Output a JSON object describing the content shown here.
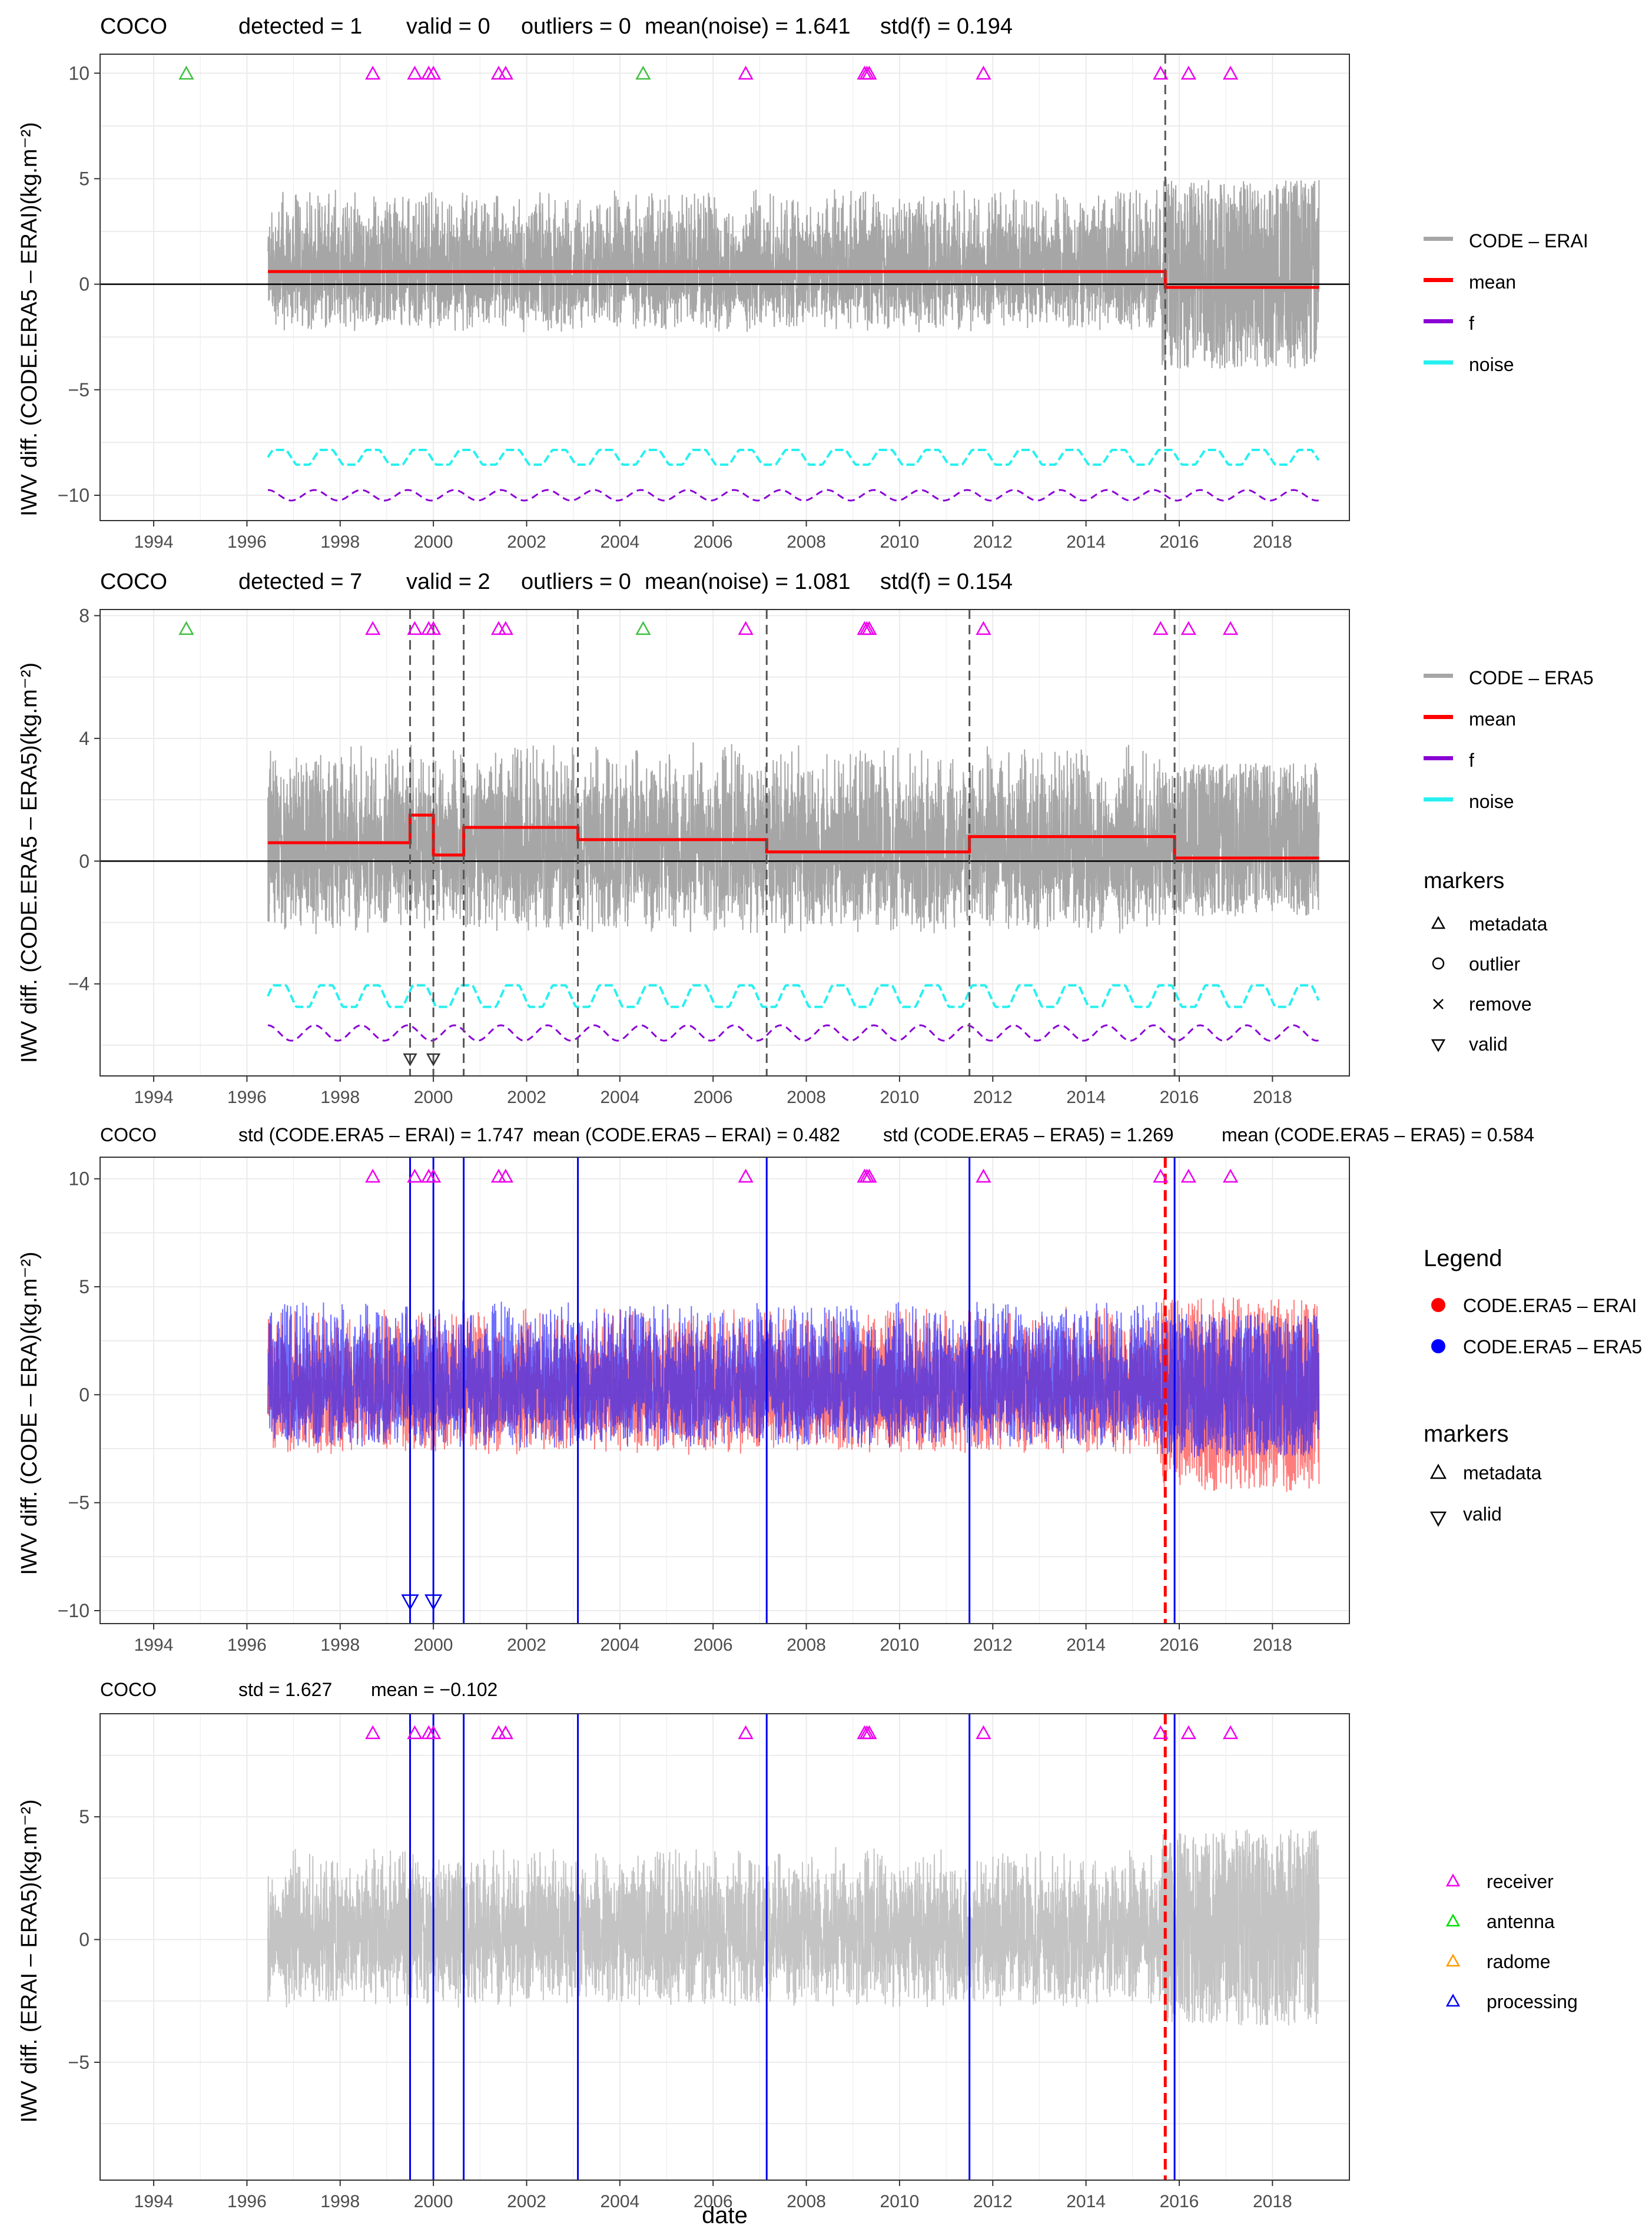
{
  "figure": {
    "xlabel": "date",
    "x_ticks": [
      "1994",
      "1996",
      "1998",
      "2000",
      "2002",
      "2004",
      "2006",
      "2008",
      "2010",
      "2012",
      "2014",
      "2016",
      "2018"
    ],
    "palette": {
      "grey": "#a6a6a6",
      "lightgrey": "#c4c4c4",
      "red": "#ff0000",
      "purple": "#8a00d4",
      "cyan": "#28f0f0",
      "blue": "#0000ee",
      "magenta": "#ee00ee",
      "green": "#40c040",
      "orange": "#ff9900",
      "dashed": "#555555"
    },
    "marker_years": {
      "receiver": [
        1998.7,
        1999.6,
        1999.9,
        2000.0,
        2001.4,
        2001.55,
        2006.7,
        2009.25,
        2009.3,
        2009.35,
        2011.8,
        2015.6,
        2016.2,
        2017.1
      ],
      "antenna": [
        1994.7,
        2004.5
      ]
    },
    "processing_years": [
      1999.5,
      2000.0,
      2000.65,
      2003.1,
      2007.15,
      2011.5,
      2015.9
    ],
    "station_change_year": 2015.7
  },
  "chart_data": [
    {
      "type": "line",
      "station": "COCO",
      "title": {
        "detected": "detected = 1",
        "valid": "valid = 0",
        "outliers": "outliers = 0",
        "mean_noise": "mean(noise) = 1.641",
        "std_f": "std(f) = 0.194"
      },
      "ylabel": "IWV diff. (CODE.ERA5 – ERAI)(kg.m⁻²)",
      "ylim": [
        -11.2,
        10.9
      ],
      "y_ticks": [
        -10,
        -5,
        0,
        5,
        10
      ],
      "legend": [
        {
          "label": "CODE – ERAI",
          "color": "#a6a6a6"
        },
        {
          "label": "mean",
          "color": "#ff0000"
        },
        {
          "label": "f",
          "color": "#8a00d4"
        },
        {
          "label": "noise",
          "color": "#28f0f0"
        }
      ],
      "mean_segments": [
        [
          1996.45,
          2015.7,
          0.6
        ],
        [
          2015.7,
          2019.0,
          -0.15
        ]
      ],
      "detected_breaks": [
        2015.7
      ],
      "noise_level": -8.2,
      "f_level": -10.0,
      "series_amplitude": {
        "before": [
          -2.5,
          3.8
        ],
        "after": [
          -4.5,
          4.5
        ]
      }
    },
    {
      "type": "line",
      "station": "COCO",
      "title": {
        "detected": "detected = 7",
        "valid": "valid = 2",
        "outliers": "outliers = 0",
        "mean_noise": "mean(noise) = 1.081",
        "std_f": "std(f) = 0.154"
      },
      "ylabel": "IWV diff. (CODE.ERA5 – ERA5)(kg.m⁻²)",
      "ylim": [
        -7.0,
        8.2
      ],
      "y_ticks": [
        -4,
        0,
        4,
        8
      ],
      "y_tick_labels": [
        "−4",
        "0",
        "4",
        "8"
      ],
      "legend": [
        {
          "label": "CODE – ERA5",
          "color": "#a6a6a6"
        },
        {
          "label": "mean",
          "color": "#ff0000"
        },
        {
          "label": "f",
          "color": "#8a00d4"
        },
        {
          "label": "noise",
          "color": "#28f0f0"
        }
      ],
      "markers_title": "markers",
      "markers": [
        {
          "label": "metadata",
          "symbol": "triangle-up"
        },
        {
          "label": "outlier",
          "symbol": "circle"
        },
        {
          "label": "remove",
          "symbol": "cross"
        },
        {
          "label": "valid",
          "symbol": "triangle-down"
        }
      ],
      "mean_segments": [
        [
          1996.45,
          1999.5,
          0.6
        ],
        [
          1999.5,
          2000.0,
          1.5
        ],
        [
          2000.0,
          2000.65,
          0.2
        ],
        [
          2000.65,
          2003.1,
          1.1
        ],
        [
          2003.1,
          2007.15,
          0.7
        ],
        [
          2007.15,
          2011.5,
          0.3
        ],
        [
          2011.5,
          2015.9,
          0.8
        ],
        [
          2015.9,
          2019.0,
          0.1
        ]
      ],
      "detected_breaks": [
        1999.5,
        2000.0,
        2000.65,
        2003.1,
        2007.15,
        2011.5,
        2015.9
      ],
      "valid_breaks": [
        1999.5,
        2000.0
      ],
      "noise_level": -4.4,
      "f_level": -5.6,
      "series_amplitude": {
        "before": [
          -2.5,
          3.2
        ],
        "after": [
          -2.2,
          2.8
        ]
      }
    },
    {
      "type": "line",
      "station": "COCO",
      "title": {
        "std_erai": "std (CODE.ERA5 – ERAI) = 1.747",
        "mean_erai": "mean (CODE.ERA5 – ERAI) = 0.482",
        "std_era5": "std (CODE.ERA5 – ERA5) = 1.269",
        "mean_era5": "mean (CODE.ERA5 – ERA5) = 0.584"
      },
      "ylabel": "IWV diff. (CODE – ERA)(kg.m⁻²)",
      "ylim": [
        -10.6,
        11.0
      ],
      "y_ticks": [
        -10,
        -5,
        0,
        5,
        10
      ],
      "legend_title": "Legend",
      "legend": [
        {
          "label": "CODE.ERA5 – ERAI",
          "color": "#ff0000"
        },
        {
          "label": "CODE.ERA5 – ERA5",
          "color": "#0000ff"
        }
      ],
      "markers_title": "markers",
      "markers": [
        {
          "label": "metadata",
          "symbol": "triangle-up"
        },
        {
          "label": "valid",
          "symbol": "triangle-down"
        }
      ],
      "series_amplitude": {
        "before": [
          -2.5,
          3.8
        ],
        "after": [
          -4.5,
          4.5
        ]
      }
    },
    {
      "type": "line",
      "station": "COCO",
      "title": {
        "std": "std = 1.627",
        "mean": "mean = −0.102"
      },
      "ylabel": "IWV diff. (ERAI – ERA5)(kg.m⁻²)",
      "ylim": [
        -9.8,
        9.2
      ],
      "y_ticks": [
        -5,
        0,
        5
      ],
      "y_tick_labels": [
        "−5",
        "0",
        "5"
      ],
      "legend": [
        {
          "label": "receiver",
          "color": "#ee00ee"
        },
        {
          "label": "antenna",
          "color": "#00dd00"
        },
        {
          "label": "radome",
          "color": "#ff9900"
        },
        {
          "label": "processing",
          "color": "#0000ee"
        }
      ],
      "series_amplitude": {
        "before": [
          -3.0,
          3.0
        ],
        "after": [
          -4.0,
          4.0
        ]
      }
    }
  ]
}
